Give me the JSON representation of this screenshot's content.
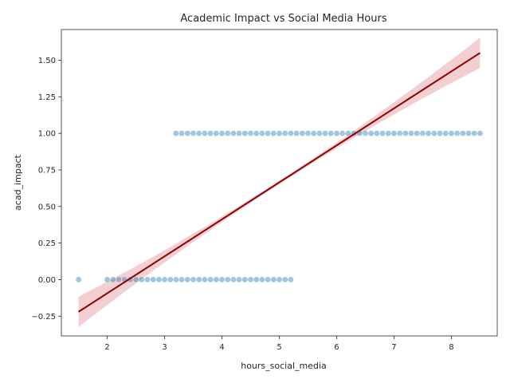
{
  "chart_data": {
    "type": "scatter",
    "title": "Academic Impact vs Social Media Hours",
    "xlabel": "hours_social_media",
    "ylabel": "acad_impact",
    "xlim": [
      1.2,
      8.8
    ],
    "ylim": [
      -0.385,
      1.71
    ],
    "xticks": [
      2,
      3,
      4,
      5,
      6,
      7,
      8
    ],
    "yticks": [
      -0.25,
      0.0,
      0.25,
      0.5,
      0.75,
      1.0,
      1.25,
      1.5
    ],
    "xtick_labels": [
      "2",
      "3",
      "4",
      "5",
      "6",
      "7",
      "8"
    ],
    "ytick_labels": [
      "−0.25",
      "0.00",
      "0.25",
      "0.50",
      "0.75",
      "1.00",
      "1.25",
      "1.50"
    ],
    "grid": false,
    "point_color": "#1f77b4",
    "regression_color": "#8b0000",
    "confidence_color": "#e8a0a4",
    "series": [
      {
        "y": 0,
        "x": [
          1.5,
          2.0,
          2.1,
          2.2,
          2.3,
          2.4,
          2.5,
          2.6,
          2.7,
          2.8,
          2.9,
          3.0,
          3.1,
          3.2,
          3.3,
          3.4,
          3.5,
          3.6,
          3.7,
          3.8,
          3.9,
          4.0,
          4.1,
          4.2,
          4.3,
          4.4,
          4.5,
          4.6,
          4.7,
          4.8,
          4.9,
          5.0,
          5.1,
          5.2
        ]
      },
      {
        "y": 1,
        "x": [
          3.2,
          3.3,
          3.4,
          3.5,
          3.6,
          3.7,
          3.8,
          3.9,
          4.0,
          4.1,
          4.2,
          4.3,
          4.4,
          4.5,
          4.6,
          4.7,
          4.8,
          4.9,
          5.0,
          5.1,
          5.2,
          5.3,
          5.4,
          5.5,
          5.6,
          5.7,
          5.8,
          5.9,
          6.0,
          6.1,
          6.2,
          6.3,
          6.4,
          6.5,
          6.6,
          6.7,
          6.8,
          6.9,
          7.0,
          7.1,
          7.2,
          7.3,
          7.4,
          7.5,
          7.6,
          7.7,
          7.8,
          7.9,
          8.0,
          8.1,
          8.2,
          8.3,
          8.4,
          8.5
        ]
      }
    ],
    "regression": {
      "x": [
        1.5,
        8.5
      ],
      "y": [
        -0.22,
        1.55
      ]
    }
  }
}
